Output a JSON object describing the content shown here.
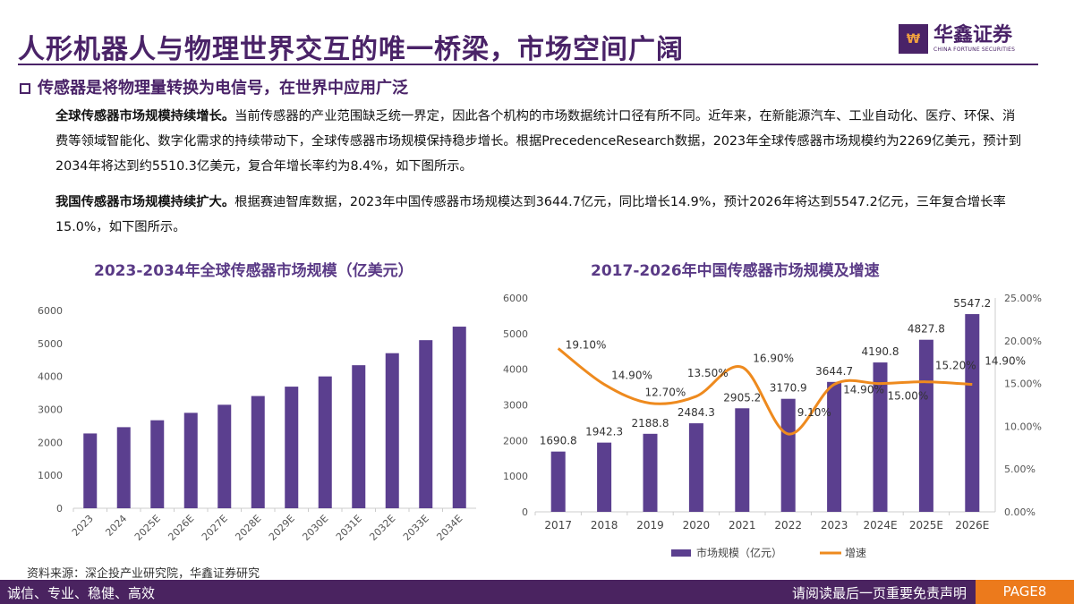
{
  "header": {
    "title": "人形机器人与物理世界交互的唯一桥梁，市场空间广阔",
    "logo_cn": "华鑫证券",
    "logo_en": "CHINA FORTUNE SECURITIES"
  },
  "subtitle": "传感器是将物理量转换为电信号，在世界中应用广泛",
  "paragraphs": [
    {
      "lead": "全球传感器市场规模持续增长。",
      "body": "当前传感器的产业范围缺乏统一界定，因此各个机构的市场数据统计口径有所不同。近年来，在新能源汽车、工业自动化、医疗、环保、消费等领域智能化、数字化需求的持续带动下，全球传感器市场规模保持稳步增长。根据PrecedenceResearch数据，2023年全球传感器市场规模约为2269亿美元，预计到2034年将达到约5510.3亿美元，复合年增长率约为8.4%，如下图所示。"
    },
    {
      "lead": "我国传感器市场规模持续扩大。",
      "body": "根据赛迪智库数据，2023年中国传感器市场规模达到3644.7亿元，同比增长14.9%，预计2026年将达到5547.2亿元，三年复合增长率15.0%，如下图所示。"
    }
  ],
  "chart_data": [
    {
      "type": "bar",
      "title": "2023-2034年全球传感器市场规模（亿美元）",
      "categories": [
        "2023",
        "2024",
        "2025E",
        "2026E",
        "2027E",
        "2028E",
        "2029E",
        "2030E",
        "2031E",
        "2032E",
        "2033E",
        "2034E"
      ],
      "values": [
        2269,
        2460,
        2670,
        2895,
        3140,
        3405,
        3690,
        4000,
        4340,
        4705,
        5100,
        5510.3
      ],
      "ylim": [
        0,
        6000
      ],
      "yticks": [
        0,
        1000,
        2000,
        3000,
        4000,
        5000,
        6000
      ],
      "color": "#5b3f8f",
      "grid": false
    },
    {
      "type": "bar+line",
      "title": "2017-2026年中国传感器市场规模及增速",
      "categories": [
        "2017",
        "2018",
        "2019",
        "2020",
        "2021",
        "2022",
        "2023",
        "2024E",
        "2025E",
        "2026E"
      ],
      "series": [
        {
          "name": "市场规模（亿元）",
          "type": "bar",
          "axis": "left",
          "values": [
            1690.8,
            1942.3,
            2188.8,
            2484.3,
            2905.2,
            3170.9,
            3644.7,
            4190.8,
            4827.8,
            5547.2
          ],
          "labels": [
            "1690.8",
            "1942.3",
            "2188.8",
            "2484.3",
            "2905.2",
            "3170.9",
            "3644.7",
            "4190.8",
            "4827.8",
            "5547.2"
          ],
          "color": "#5b3f8f"
        },
        {
          "name": "增速",
          "type": "line",
          "axis": "right",
          "values": [
            19.1,
            14.9,
            12.7,
            13.5,
            16.9,
            9.1,
            14.9,
            15.0,
            15.2,
            14.9
          ],
          "labels": [
            "19.10%",
            "14.90%",
            "12.70%",
            "13.50%",
            "16.90%",
            "9.10%",
            "14.90%",
            "15.00%",
            "15.20%",
            "14.90%"
          ],
          "color": "#ee8a1e"
        }
      ],
      "ylim_left": [
        0,
        6000
      ],
      "yticks_left": [
        "0",
        "1000",
        "2000",
        "3000",
        "4000",
        "5000",
        "6000"
      ],
      "ylim_right": [
        0,
        25
      ],
      "yticks_right": [
        "0.00%",
        "5.00%",
        "10.00%",
        "15.00%",
        "20.00%",
        "25.00%"
      ],
      "legend_position": "bottom",
      "grid": false
    }
  ],
  "source": "资料来源：深企投产业研究院，华鑫证券研究",
  "footer": {
    "motto": "诚信、专业、稳健、高效",
    "disclaimer": "请阅读最后一页重要免责声明",
    "page": "PAGE8"
  }
}
